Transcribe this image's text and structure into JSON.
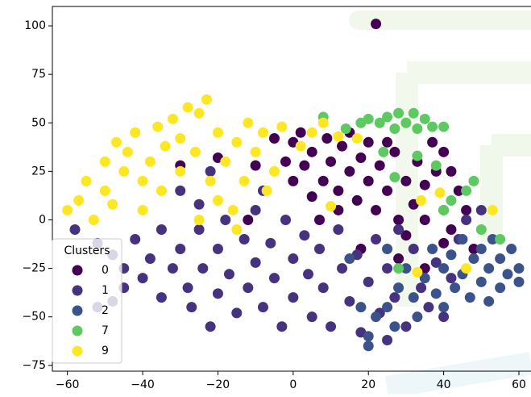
{
  "chart_data": {
    "type": "scatter",
    "xlim": [
      -64,
      64.5
    ],
    "ylim": [
      -78,
      110
    ],
    "xticks": [
      {
        "value": -60,
        "label": "−60"
      },
      {
        "value": -40,
        "label": "−40"
      },
      {
        "value": -20,
        "label": "−20"
      },
      0,
      20,
      40,
      60
    ],
    "yticks": [
      {
        "value": -75,
        "label": "−75"
      },
      {
        "value": -50,
        "label": "−50"
      },
      {
        "value": -25,
        "label": "−25"
      },
      0,
      25,
      50,
      75,
      100
    ],
    "legend": {
      "title": "Clusters",
      "position": "lower left"
    },
    "series": [
      {
        "name": "0",
        "color": "#440154",
        "x": [
          22,
          0,
          -2,
          0,
          2,
          3,
          5,
          5,
          7,
          8,
          9,
          10,
          12,
          12,
          13,
          15,
          15,
          17,
          18,
          20,
          20,
          22,
          23,
          25,
          25,
          27,
          28,
          30,
          30,
          32,
          33,
          35,
          35,
          37,
          38,
          40,
          40,
          42,
          42,
          44,
          46,
          -10,
          -20,
          -30,
          -5,
          -12,
          18,
          28,
          35,
          48
        ],
        "y": [
          101,
          40,
          30,
          20,
          45,
          28,
          12,
          35,
          0,
          20,
          42,
          30,
          15,
          5,
          38,
          25,
          45,
          10,
          32,
          20,
          40,
          5,
          28,
          15,
          40,
          35,
          0,
          20,
          -8,
          8,
          30,
          0,
          18,
          40,
          25,
          35,
          -12,
          25,
          -5,
          15,
          5,
          28,
          32,
          28,
          42,
          0,
          -15,
          -20,
          -25,
          -15
        ]
      },
      {
        "name": "1",
        "color": "#46327e",
        "x": [
          -52,
          -48,
          -45,
          -42,
          -40,
          -38,
          -35,
          -35,
          -32,
          -30,
          -28,
          -27,
          -25,
          -24,
          -22,
          -20,
          -20,
          -18,
          -17,
          -15,
          -13,
          -12,
          -10,
          -10,
          -8,
          -6,
          -5,
          -3,
          -2,
          0,
          0,
          3,
          4,
          5,
          7,
          8,
          10,
          12,
          13,
          15,
          17,
          18,
          20,
          22,
          23,
          25,
          27,
          28,
          30,
          32,
          34,
          36,
          38,
          40,
          42,
          44,
          -30,
          -22,
          -25,
          -52,
          -48,
          -8,
          25,
          40,
          46,
          50,
          -58,
          -45
        ],
        "y": [
          -12,
          -18,
          -25,
          -10,
          -30,
          -20,
          -5,
          -40,
          -25,
          -15,
          -35,
          -45,
          -5,
          -25,
          -55,
          -15,
          -38,
          0,
          -28,
          -48,
          -10,
          -35,
          5,
          -22,
          -45,
          -12,
          -30,
          -55,
          0,
          -20,
          -40,
          -8,
          -28,
          -50,
          -15,
          -35,
          -55,
          -5,
          -25,
          -42,
          -18,
          -58,
          -32,
          -10,
          -48,
          -25,
          -40,
          -5,
          -55,
          -15,
          -35,
          -45,
          -22,
          -50,
          -30,
          -10,
          15,
          25,
          8,
          -45,
          -42,
          15,
          -62,
          5,
          0,
          5,
          -5,
          -35
        ]
      },
      {
        "name": "2",
        "color": "#3b528b",
        "x": [
          20,
          22,
          25,
          28,
          30,
          32,
          35,
          37,
          38,
          40,
          42,
          43,
          45,
          45,
          47,
          48,
          50,
          50,
          52,
          53,
          55,
          55,
          57,
          58,
          60,
          60,
          52,
          27,
          33,
          40,
          18,
          15,
          25,
          20
        ],
        "y": [
          -60,
          -50,
          -45,
          -35,
          -25,
          -40,
          -30,
          -15,
          -38,
          -25,
          -18,
          -35,
          -10,
          -28,
          -40,
          -20,
          -15,
          -32,
          -25,
          -10,
          -35,
          -20,
          -28,
          -15,
          -25,
          -32,
          -42,
          -55,
          -50,
          -45,
          -45,
          -20,
          -15,
          -65
        ]
      },
      {
        "name": "7",
        "color": "#5ec962",
        "x": [
          20,
          23,
          25,
          28,
          30,
          32,
          35,
          37,
          40,
          27,
          33,
          8,
          14,
          18,
          24,
          27,
          33,
          38,
          42,
          40,
          48,
          50,
          55,
          46,
          28
        ],
        "y": [
          52,
          50,
          53,
          55,
          50,
          55,
          52,
          48,
          48,
          47,
          47,
          53,
          47,
          50,
          35,
          22,
          33,
          28,
          10,
          5,
          20,
          -5,
          -10,
          15,
          -25
        ]
      },
      {
        "name": "9",
        "color": "#fde725",
        "x": [
          -60,
          -57,
          -55,
          -53,
          -50,
          -50,
          -48,
          -47,
          -45,
          -44,
          -42,
          -40,
          -40,
          -38,
          -36,
          -35,
          -34,
          -32,
          -30,
          -30,
          -28,
          -26,
          -25,
          -23,
          -22,
          -20,
          -20,
          -18,
          -16,
          -15,
          -13,
          -12,
          -10,
          -8,
          -7,
          -5,
          -3,
          2,
          5,
          8,
          12,
          -15,
          -25,
          10,
          34,
          39,
          53,
          46,
          33,
          17
        ],
        "y": [
          5,
          10,
          20,
          0,
          15,
          30,
          8,
          40,
          25,
          35,
          45,
          20,
          5,
          30,
          48,
          15,
          38,
          52,
          25,
          42,
          58,
          35,
          55,
          62,
          20,
          45,
          10,
          30,
          5,
          40,
          20,
          50,
          35,
          45,
          15,
          25,
          48,
          38,
          45,
          50,
          43,
          -5,
          0,
          7,
          10,
          14,
          5,
          -25,
          -27,
          42
        ]
      }
    ]
  }
}
